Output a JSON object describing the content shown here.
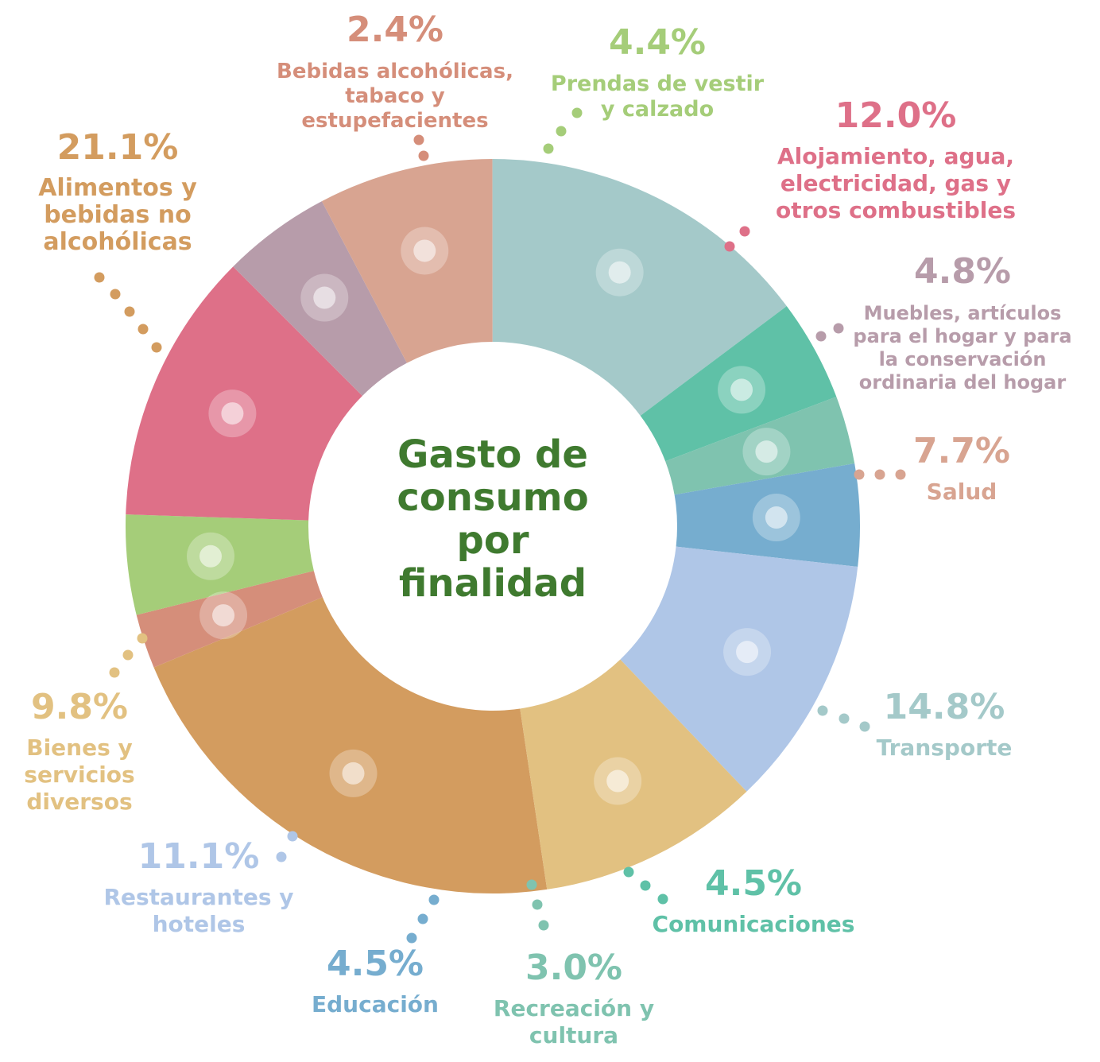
{
  "chart_data": {
    "type": "pie",
    "title": "Gasto de consumo por finalidad",
    "slices": [
      {
        "value": 21.1,
        "pct_label": "21.1%",
        "label": [
          "Alimentos y",
          "bebidas no",
          "alcohólicas"
        ],
        "color": "#D39C5F",
        "icon": "shopping-cart-icon"
      },
      {
        "value": 2.4,
        "pct_label": "2.4%",
        "label": [
          "Bebidas alcohólicas,",
          "tabaco y",
          "estupefacientes"
        ],
        "color": "#D58E7A",
        "icon": "bottle-icon"
      },
      {
        "value": 4.4,
        "pct_label": "4.4%",
        "label": [
          "Prendas de vestir",
          "y calzado"
        ],
        "color": "#A5CD79",
        "icon": "clothing-icon"
      },
      {
        "value": 12.0,
        "pct_label": "12.0%",
        "label": [
          "Alojamiento, agua,",
          "electricidad, gas y",
          "otros combustibles"
        ],
        "color": "#DE7088",
        "icon": "building-utilities-icon"
      },
      {
        "value": 4.8,
        "pct_label": "4.8%",
        "label": [
          "Muebles, artículos",
          "para el hogar y para",
          "la conservación",
          "ordinaria del hogar"
        ],
        "color": "#B79CAA",
        "icon": "sofa-oven-icon"
      },
      {
        "value": 7.7,
        "pct_label": "7.7%",
        "label": [
          "Salud"
        ],
        "color": "#D8A491",
        "icon": "stethoscope-icon"
      },
      {
        "value": 14.8,
        "pct_label": "14.8%",
        "label": [
          "Transporte"
        ],
        "color": "#A4C9C9",
        "icon": "bus-icon"
      },
      {
        "value": 4.5,
        "pct_label": "4.5%",
        "label": [
          "Comunicaciones"
        ],
        "color": "#5FC1A7",
        "icon": "phone-icon"
      },
      {
        "value": 3.0,
        "pct_label": "3.0%",
        "label": [
          "Recreación y",
          "cultura"
        ],
        "color": "#7FC3AF",
        "icon": "guitar-ball-icon"
      },
      {
        "value": 4.5,
        "pct_label": "4.5%",
        "label": [
          "Educación"
        ],
        "color": "#76ADCF",
        "icon": "books-icon"
      },
      {
        "value": 11.1,
        "pct_label": "11.1%",
        "label": [
          "Restaurantes y",
          "hoteles"
        ],
        "color": "#AFC6E7",
        "icon": "hotel-icon"
      },
      {
        "value": 9.8,
        "pct_label": "9.8%",
        "label": [
          "Bienes y",
          "servicios",
          "diversos"
        ],
        "color": "#E2C181",
        "icon": "paint-bucket-icon"
      }
    ]
  },
  "center_text": [
    "Gasto de",
    "consumo",
    "por",
    "finalidad"
  ],
  "center_color": "#3F7A2F"
}
